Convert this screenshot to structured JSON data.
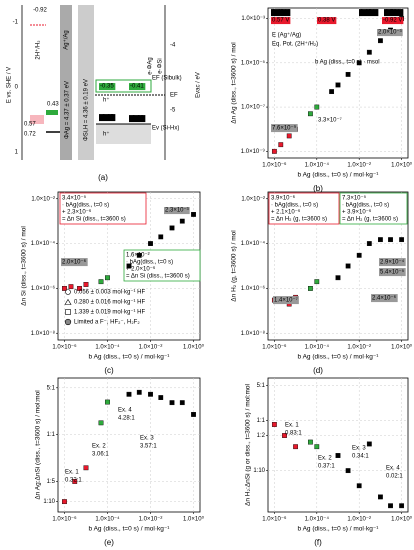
{
  "diagram": {
    "panel": "(a)",
    "labels": [
      {
        "text": "E vs. SHE / V",
        "color": "#000"
      },
      {
        "text": "Evac / eV",
        "color": "#000"
      },
      {
        "text": "-1",
        "color": "#000"
      },
      {
        "text": "0",
        "color": "#000"
      },
      {
        "text": "1",
        "color": "#000"
      },
      {
        "text": "-4",
        "color": "#000"
      },
      {
        "text": "-5",
        "color": "#000"
      },
      {
        "text": "-0.92",
        "color": "#e8192c"
      },
      {
        "text": "2H⁺/H₂",
        "color": "#e8192c"
      },
      {
        "text": "0.57",
        "color": "#e8192c"
      },
      {
        "text": "0.43",
        "color": "#2eaa3c"
      },
      {
        "text": "Ag⁺/Ag",
        "color": "#000"
      },
      {
        "text": "0.72",
        "color": "#000"
      },
      {
        "text": "ΦAg = 4.37 ± 0.37 eV",
        "color": "#000"
      },
      {
        "text": "ΦSi,H = 4.36 ± 0.19 eV",
        "color": "#000"
      },
      {
        "text": "EF",
        "color": "#000"
      },
      {
        "text": "-0.35",
        "color": "#fff",
        "background": "#2eaa3c"
      },
      {
        "text": "-0.41",
        "color": "#fff",
        "background": "#2eaa3c"
      },
      {
        "text": "EF (Sibulk)",
        "color": "#2eaa3c"
      },
      {
        "text": "h⁺",
        "color": "#000"
      },
      {
        "text": "-0.65",
        "color": "#fff",
        "background": "#000"
      },
      {
        "text": "h⁺",
        "color": "#000"
      },
      {
        "text": "-0.68",
        "color": "#fff",
        "background": "#000"
      },
      {
        "text": "Ev (Si-Hx)",
        "color": "#000"
      },
      {
        "text": "e·ΦAg",
        "color": "#000"
      },
      {
        "text": "e·ΦSi",
        "color": "#000"
      }
    ]
  },
  "chart_data": [
    {
      "type": "scatter",
      "panel": "(b)",
      "xlabel": "b Ag (diss., t=0 s) / mol·kg⁻¹",
      "ylabel": "Δn Ag (diss., t=3600 s) / mol",
      "xscale": "log",
      "yscale": "log",
      "xlim": [
        5e-07,
        2
      ],
      "ylim": [
        5e-10,
        0.003
      ],
      "xticks": [
        {
          "value": 1e-06,
          "label": "1.0×10⁻⁶"
        },
        {
          "value": 0.0001,
          "label": "1.0×10⁻⁴"
        },
        {
          "value": 0.01,
          "label": "1.0×10⁻²"
        },
        {
          "value": 1,
          "label": "1.0×10⁰"
        }
      ],
      "yticks": [
        {
          "value": 0.001,
          "label": "1.0×10⁻³"
        },
        {
          "value": 1e-05,
          "label": "1.0×10⁻⁵"
        },
        {
          "value": 1e-07,
          "label": "1.0×10⁻⁷"
        },
        {
          "value": 1e-09,
          "label": "1.0×10⁻⁹"
        }
      ],
      "grid": true,
      "series": [
        {
          "color": "#e8192c",
          "x": [
            1e-06,
            2e-06,
            5e-06,
            1e-05
          ],
          "y": [
            1e-09,
            2e-09,
            5e-09,
            1e-08
          ]
        },
        {
          "color": "#2eaa3c",
          "x": [
            5e-05,
            0.0001
          ],
          "y": [
            5e-08,
            1e-07
          ]
        },
        {
          "color": "#000",
          "x": [
            0.0005,
            0.001,
            0.003,
            0.01,
            0.03,
            0.1,
            0.3,
            1
          ],
          "y": [
            5e-07,
            1e-06,
            3e-06,
            1e-05,
            3e-05,
            0.0001,
            0.0003,
            0.001
          ]
        }
      ],
      "annotations": [
        {
          "text": "0.43 V",
          "color": "#fff",
          "background": "#000"
        },
        {
          "text": "0.57 V",
          "color": "#fff",
          "background": "#e8192c"
        },
        {
          "text": "0.38 V",
          "color": "#fff",
          "background": "#e8192c"
        },
        {
          "text": "0.65 V",
          "color": "#fff",
          "background": "#000"
        },
        {
          "text": "0.72 V",
          "color": "#fff",
          "background": "#000"
        },
        {
          "text": "-0.92 V",
          "color": "#fff",
          "background": "#e8192c"
        },
        {
          "text": "E (Ag⁺/Ag)",
          "color": "#000"
        },
        {
          "text": "Eq. Pot. (2H⁺/H₂)",
          "color": "#e8192c"
        },
        {
          "text": "b Ag (diss., t=0 s) · msol",
          "color": "#000"
        },
        {
          "text": "7.6×10⁻⁹",
          "color": "#fff",
          "background": "#999"
        },
        {
          "text": "3.3×10⁻⁷",
          "color": "#999"
        },
        {
          "text": "2.0×10⁻³",
          "color": "#fff",
          "background": "#999"
        }
      ]
    },
    {
      "type": "scatter",
      "panel": "(c)",
      "xlabel": "b Ag (diss., t=0 s) / mol·kg⁻¹",
      "ylabel": "Δn Si (diss., t=3600 s) / mol",
      "xscale": "log",
      "yscale": "log",
      "xlim": [
        5e-07,
        2
      ],
      "ylim": [
        5e-09,
        0.02
      ],
      "xticks": [
        {
          "value": 1e-06,
          "label": "1.0×10⁻⁶"
        },
        {
          "value": 0.0001,
          "label": "1.0×10⁻⁴"
        },
        {
          "value": 0.01,
          "label": "1.0×10⁻²"
        },
        {
          "value": 1,
          "label": "1.0×10⁰"
        }
      ],
      "yticks": [
        {
          "value": 0.01,
          "label": "1.0×10⁻²"
        },
        {
          "value": 0.0001,
          "label": "1.0×10⁻⁴"
        },
        {
          "value": 1e-06,
          "label": "1.0×10⁻⁶"
        },
        {
          "value": 1e-08,
          "label": "1.0×10⁻⁸"
        }
      ],
      "grid": true,
      "series": [
        {
          "color": "#e8192c",
          "x": [
            1e-06,
            2e-06,
            5e-06,
            1e-05
          ],
          "y": [
            1e-06,
            1.2e-06,
            1e-06,
            1.5e-06
          ]
        },
        {
          "color": "#2eaa3c",
          "x": [
            5e-05,
            0.0001
          ],
          "y": [
            2e-06,
            3e-06
          ]
        },
        {
          "color": "#000",
          "x": [
            0.001,
            0.003,
            0.01,
            0.03,
            0.1,
            0.3,
            1
          ],
          "y": [
            1e-05,
            3e-05,
            0.0001,
            0.0002,
            0.0005,
            0.001,
            0.002
          ]
        }
      ],
      "legend": [
        "0.056 ± 0.003 mol·kg⁻¹ HF",
        "0.280 ± 0.016 mol·kg⁻¹ HF",
        "1.339 ± 0.019 mol·kg⁻¹ HF",
        "Limited a F⁻, HF₂⁻, H₂F₂"
      ],
      "annotations": [
        {
          "text": "3.4×10⁻⁵",
          "color": "#e8192c"
        },
        {
          "text": "· bAg(diss., t=0 s)",
          "color": "#e8192c"
        },
        {
          "text": "+ 2.3×10⁻⁶",
          "color": "#e8192c"
        },
        {
          "text": "= Δn Si (diss., t=3600 s)",
          "color": "#e8192c"
        },
        {
          "text": "1.6×10⁻²",
          "color": "#000"
        },
        {
          "text": "· bAg(diss., t=0 s)",
          "color": "#000"
        },
        {
          "text": "+ 2.0×10⁻⁶",
          "color": "#000"
        },
        {
          "text": "= Δn Si (diss., t=3600 s)",
          "color": "#000"
        },
        {
          "text": "2.0×10⁻⁶",
          "color": "#fff",
          "background": "#999"
        },
        {
          "text": "2.3×10⁻³",
          "color": "#fff",
          "background": "#999"
        }
      ]
    },
    {
      "type": "scatter",
      "panel": "(d)",
      "xlabel": "b Ag (diss., t=0 s) / mol·kg⁻¹",
      "ylabel": "Δn H₂ (g, t=3600 s) / mol",
      "xscale": "log",
      "yscale": "log",
      "xlim": [
        5e-07,
        2
      ],
      "ylim": [
        5e-09,
        0.02
      ],
      "xticks": [
        {
          "value": 1e-06,
          "label": "1.0×10⁻⁶"
        },
        {
          "value": 0.0001,
          "label": "1.0×10⁻⁴"
        },
        {
          "value": 0.01,
          "label": "1.0×10⁻²"
        },
        {
          "value": 1,
          "label": "1.0×10⁰"
        }
      ],
      "yticks": [
        {
          "value": 0.01,
          "label": "1.0×10⁻²"
        },
        {
          "value": 0.0001,
          "label": "1.0×10⁻⁴"
        },
        {
          "value": 1e-06,
          "label": "1.0×10⁻⁶"
        },
        {
          "value": 1e-08,
          "label": "1.0×10⁻⁸"
        }
      ],
      "grid": true,
      "series": [
        {
          "color": "#e8192c",
          "x": [
            1e-06,
            2e-06,
            5e-06,
            1e-05
          ],
          "y": [
            3e-07,
            3e-07,
            2e-07,
            4e-07
          ]
        },
        {
          "color": "#2eaa3c",
          "x": [
            5e-05,
            0.0001
          ],
          "y": [
            1e-06,
            2e-06
          ]
        },
        {
          "color": "#000",
          "x": [
            0.001,
            0.003,
            0.01,
            0.03,
            0.1,
            0.3,
            1
          ],
          "y": [
            3e-06,
            1e-05,
            3e-05,
            0.0001,
            0.00015,
            0.00015,
            0.00015
          ]
        }
      ],
      "annotations": [
        {
          "text": "3.9×10⁻⁶",
          "color": "#e8192c"
        },
        {
          "text": "· bAg(diss., t=0 s)",
          "color": "#e8192c"
        },
        {
          "text": "+ 2.1×10⁻⁶",
          "color": "#e8192c"
        },
        {
          "text": "= Δn H₂ (g, t=3600 s)",
          "color": "#e8192c"
        },
        {
          "text": "7.3×10⁻⁵",
          "color": "#000"
        },
        {
          "text": "· bAg(diss., t=0 s)",
          "color": "#000"
        },
        {
          "text": "+ 3.9×10⁻⁶",
          "color": "#000"
        },
        {
          "text": "= Δn H₂ (g, t=3600 s)",
          "color": "#000"
        },
        {
          "text": "2.9×10⁻⁴",
          "color": "#fff",
          "background": "#999"
        },
        {
          "text": "5.4×10⁻⁵",
          "color": "#fff",
          "background": "#999"
        },
        {
          "text": "2.4×10⁻⁶",
          "color": "#fff",
          "background": "#999"
        },
        {
          "text": "1.4×10⁻⁷",
          "color": "#fff",
          "background": "#999"
        }
      ]
    },
    {
      "type": "scatter",
      "panel": "(e)",
      "xlabel": "b Ag (diss., t=0 s) / mol·kg⁻¹",
      "ylabel": "Δn Ag:ΔnSi (diss., t=3600 s) / mol:mol",
      "xscale": "log",
      "yscale": "log",
      "xlim": [
        5e-07,
        2
      ],
      "ylim": [
        0.07,
        7
      ],
      "xticks": [
        {
          "value": 1e-06,
          "label": "1.0×10⁻⁶"
        },
        {
          "value": 0.0001,
          "label": "1.0×10⁻⁴"
        },
        {
          "value": 0.01,
          "label": "1.0×10⁻²"
        },
        {
          "value": 1,
          "label": "1.0×10⁰"
        }
      ],
      "yticks": [
        {
          "value": 5,
          "label": "5:1"
        },
        {
          "value": 1,
          "label": "1:1"
        },
        {
          "value": 0.2,
          "label": "1:5"
        },
        {
          "value": 0.1,
          "label": "1:10"
        }
      ],
      "grid": true,
      "series": [
        {
          "color": "#e8192c",
          "x": [
            1e-06,
            3e-06,
            1e-05
          ],
          "y": [
            0.1,
            0.2,
            0.32
          ]
        },
        {
          "color": "#2eaa3c",
          "x": [
            5e-05,
            0.0001
          ],
          "y": [
            1.5,
            3.06
          ]
        },
        {
          "color": "#000",
          "x": [
            0.001,
            0.003,
            0.01,
            0.03,
            0.1,
            0.3,
            1
          ],
          "y": [
            4,
            4.28,
            4,
            3.57,
            3,
            3,
            2
          ]
        }
      ],
      "annotations": [
        {
          "text": "Ex. 1",
          "color": "#e8192c"
        },
        {
          "text": "0.32:1",
          "color": "#e8192c"
        },
        {
          "text": "Ex. 2",
          "color": "#2eaa3c"
        },
        {
          "text": "3.06:1",
          "color": "#2eaa3c"
        },
        {
          "text": "Ex. 3",
          "color": "#1e9bd7"
        },
        {
          "text": "3.57:1",
          "color": "#1e9bd7"
        },
        {
          "text": "Ex. 4",
          "color": "#000"
        },
        {
          "text": "4.28:1",
          "color": "#000"
        }
      ]
    },
    {
      "type": "scatter",
      "panel": "(f)",
      "xlabel": "b Ag (diss., t=0 s) / mol·kg⁻¹",
      "ylabel": "Δn H₂:ΔnSi (g or diss., t=3600 s) / mol:mol",
      "xscale": "log",
      "yscale": "log",
      "xlim": [
        5e-07,
        2
      ],
      "ylim": [
        0.015,
        7
      ],
      "xticks": [
        {
          "value": 1e-06,
          "label": "1.0×10⁻⁶"
        },
        {
          "value": 0.0001,
          "label": "1.0×10⁻⁴"
        },
        {
          "value": 0.01,
          "label": "1.0×10⁻²"
        },
        {
          "value": 1,
          "label": "1.0×10⁰"
        }
      ],
      "yticks": [
        {
          "value": 5,
          "label": "5:1"
        },
        {
          "value": 1,
          "label": "1:1"
        },
        {
          "value": 0.5,
          "label": "1:2"
        },
        {
          "value": 0.1,
          "label": "1:10"
        }
      ],
      "grid": true,
      "series": [
        {
          "color": "#e8192c",
          "x": [
            1e-06,
            3e-06,
            1e-05
          ],
          "y": [
            0.83,
            0.5,
            0.3
          ]
        },
        {
          "color": "#2eaa3c",
          "x": [
            5e-05,
            0.0001
          ],
          "y": [
            0.37,
            0.3
          ]
        },
        {
          "color": "#000",
          "x": [
            0.001,
            0.003,
            0.01,
            0.03,
            0.1,
            0.3,
            1
          ],
          "y": [
            0.2,
            0.1,
            0.05,
            0.34,
            0.03,
            0.02,
            0.02
          ]
        }
      ],
      "annotations": [
        {
          "text": "Ex. 1",
          "color": "#e8192c"
        },
        {
          "text": "0.83:1",
          "color": "#e8192c"
        },
        {
          "text": "Ex. 2",
          "color": "#2eaa3c"
        },
        {
          "text": "0.37:1",
          "color": "#2eaa3c"
        },
        {
          "text": "Ex. 3",
          "color": "#1e9bd7"
        },
        {
          "text": "0.34:1",
          "color": "#1e9bd7"
        },
        {
          "text": "Ex. 4",
          "color": "#000"
        },
        {
          "text": "0.02:1",
          "color": "#000"
        }
      ]
    }
  ]
}
